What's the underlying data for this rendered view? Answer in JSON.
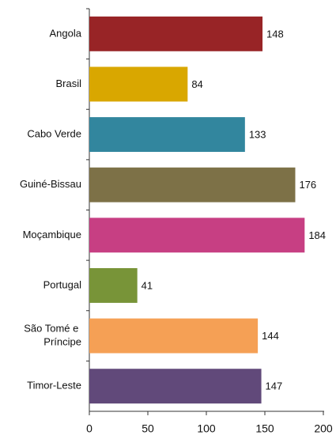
{
  "chart_data": {
    "type": "barh",
    "categories": [
      "Angola",
      "Brasil",
      "Cabo Verde",
      "Guiné-Bissau",
      "Moçambique",
      "Portugal",
      "São Tomé e Príncipe",
      "Timor-Leste"
    ],
    "values": [
      148,
      84,
      133,
      176,
      184,
      41,
      144,
      147
    ],
    "colors": [
      "#982426",
      "#d9a700",
      "#32869e",
      "#7d7147",
      "#c73f83",
      "#789438",
      "#f5a055",
      "#61497a"
    ],
    "xlim": [
      0,
      200
    ],
    "xticks": [
      0,
      50,
      100,
      150,
      200
    ]
  }
}
